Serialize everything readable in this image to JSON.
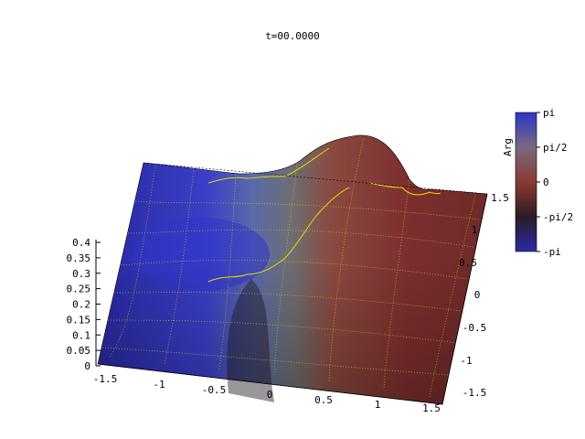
{
  "chart_data": {
    "type": "surface",
    "title": "t=00.0000",
    "xlabel": "",
    "ylabel": "",
    "zlabel": "",
    "x_range": [
      -1.5,
      1.5
    ],
    "y_range": [
      -1.5,
      1.5
    ],
    "z_range": [
      0,
      0.42
    ],
    "x_ticks": [
      "-1.5",
      "-1",
      "-0.5",
      "0",
      "0.5",
      "1",
      "1.5"
    ],
    "y_ticks": [
      "-1.5",
      "-1",
      "-0.5",
      "0",
      "0.5",
      "1",
      "1.5"
    ],
    "z_ticks": [
      "0",
      "0.05",
      "0.1",
      "0.15",
      "0.2",
      "0.25",
      "0.3",
      "0.35",
      "0.4"
    ],
    "colorbar": {
      "label": "Arg",
      "ticks": [
        "pi",
        "pi/2",
        "0",
        "-pi/2",
        "-pi"
      ],
      "colors": [
        "#2b35c4",
        "#7a6a80",
        "#8b3a33",
        "#2a1c22",
        "#2a2aa8"
      ]
    },
    "surface": {
      "peak": {
        "x": 0.5,
        "y": 0.5,
        "z": 0.42
      },
      "dip": {
        "x": -0.5,
        "y": -0.1,
        "z": 0.02
      },
      "base_level": 0.1,
      "phase_left": "blue",
      "phase_right": "red",
      "contour_color": "#e6d800"
    }
  }
}
